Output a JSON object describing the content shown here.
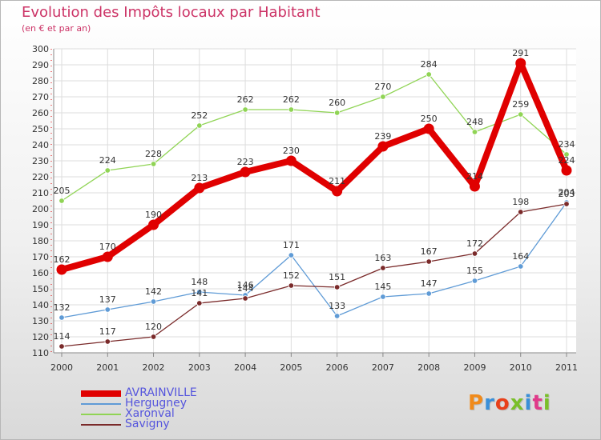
{
  "title": "Evolution des Impôts locaux par Habitant",
  "subtitle": "(en € et par an)",
  "brand": {
    "text": "Proxiti",
    "colors": [
      "#f08a1a",
      "#3a8fd8",
      "#e8401a",
      "#7abf2a",
      "#3a8fd8",
      "#e03a8a",
      "#7abf2a"
    ]
  },
  "chart_data": {
    "type": "line",
    "x": [
      "2000",
      "2001",
      "2002",
      "2003",
      "2004",
      "2005",
      "2006",
      "2007",
      "2008",
      "2009",
      "2010",
      "2011"
    ],
    "ylim": [
      110,
      300
    ],
    "yticks": [
      110,
      120,
      130,
      140,
      150,
      160,
      170,
      180,
      190,
      200,
      210,
      220,
      230,
      240,
      250,
      260,
      270,
      280,
      290,
      300
    ],
    "grid": true,
    "legend_position": "bottom-left",
    "series": [
      {
        "name": "AVRAINVILLE",
        "color": "#e00000",
        "emphasis": true,
        "values": [
          162,
          170,
          190,
          213,
          223,
          230,
          211,
          239,
          250,
          214,
          291,
          224
        ]
      },
      {
        "name": "Hergugney",
        "color": "#5f9bd6",
        "values": [
          132,
          137,
          142,
          148,
          146,
          171,
          133,
          145,
          147,
          155,
          164,
          204
        ]
      },
      {
        "name": "Xaronval",
        "color": "#90d455",
        "values": [
          205,
          224,
          228,
          252,
          262,
          262,
          260,
          270,
          284,
          248,
          259,
          234
        ]
      },
      {
        "name": "Savigny",
        "color": "#7a2a2a",
        "values": [
          114,
          117,
          120,
          141,
          144,
          152,
          151,
          163,
          167,
          172,
          198,
          203
        ]
      }
    ]
  }
}
